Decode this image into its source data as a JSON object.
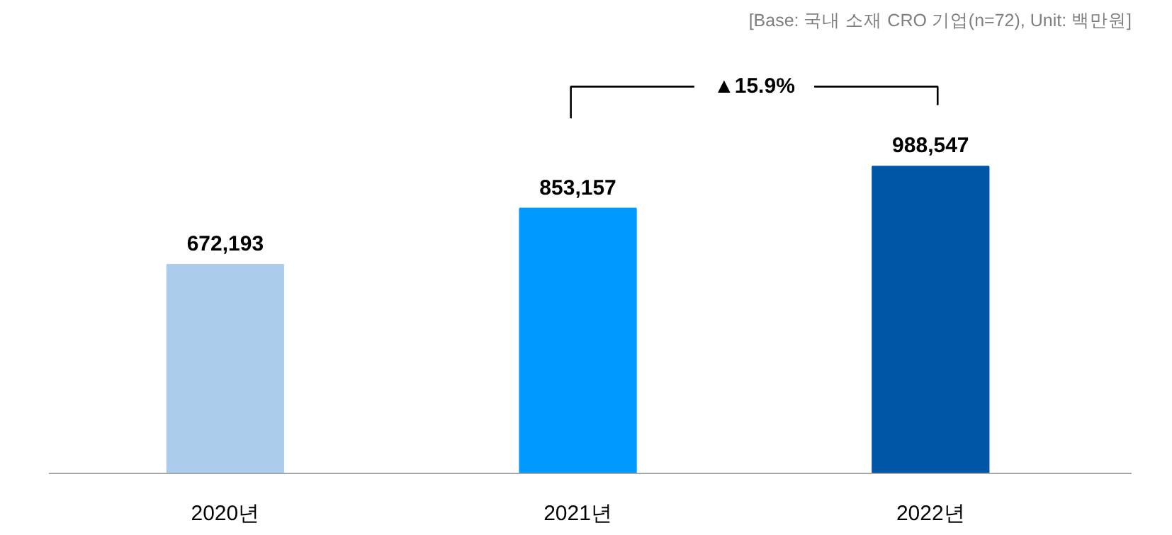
{
  "chart_data": {
    "type": "bar",
    "categories": [
      "2020년",
      "2021년",
      "2022년"
    ],
    "values": [
      672193,
      853157,
      988547
    ],
    "colors": [
      "#abcdeb",
      "#0099ff",
      "#0056a6"
    ],
    "data_labels": true,
    "value_labels": [
      "672,193",
      "853,157",
      "988,547"
    ],
    "annotations": [
      "[Base: 국내 소재 CRO 기업(n=72), Unit: 백만원]",
      "▲15.9%"
    ]
  }
}
